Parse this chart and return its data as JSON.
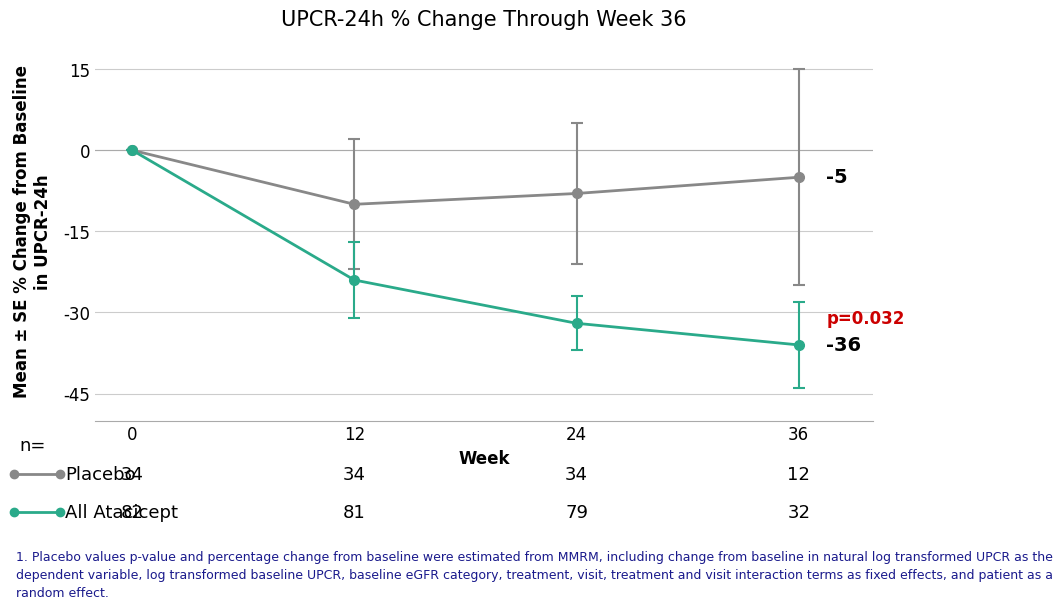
{
  "title": "UPCR-24h % Change Through Week 36",
  "xlabel": "Week",
  "ylabel": "Mean ± SE % Change from Baseline\nin UPCR-24h",
  "weeks": [
    0,
    12,
    24,
    36
  ],
  "placebo_values": [
    0,
    -10,
    -8,
    -5
  ],
  "atacicept_values": [
    0,
    -24,
    -32,
    -36
  ],
  "placebo_err_low": [
    0,
    12,
    13,
    20
  ],
  "placebo_err_high": [
    0,
    12,
    13,
    20
  ],
  "atacicept_err_low": [
    0,
    7,
    5,
    8
  ],
  "atacicept_err_high": [
    0,
    7,
    5,
    8
  ],
  "placebo_color": "#888888",
  "atacicept_color": "#2aaa8a",
  "ylim": [
    -50,
    20
  ],
  "yticks": [
    -45,
    -30,
    -15,
    0,
    15
  ],
  "xticks": [
    0,
    12,
    24,
    36
  ],
  "placebo_ns": [
    "34",
    "34",
    "34",
    "12"
  ],
  "atacicept_ns": [
    "82",
    "81",
    "79",
    "32"
  ],
  "footnote": "1. Placebo values p-value and percentage change from baseline were estimated from MMRM, including change from baseline in natural log transformed UPCR as the dependent variable, log transformed baseline UPCR, baseline eGFR category, treatment, visit, treatment and visit interaction terms as fixed effects, and patient as a random effect.",
  "pvalue_text": "p=0.032",
  "pvalue_color": "#cc0000",
  "label_36_placebo": "-5",
  "label_36_atacicept": "-36",
  "background_color": "#ffffff",
  "title_fontsize": 15,
  "label_fontsize": 12,
  "tick_fontsize": 12,
  "legend_fontsize": 13,
  "footnote_fontsize": 9
}
